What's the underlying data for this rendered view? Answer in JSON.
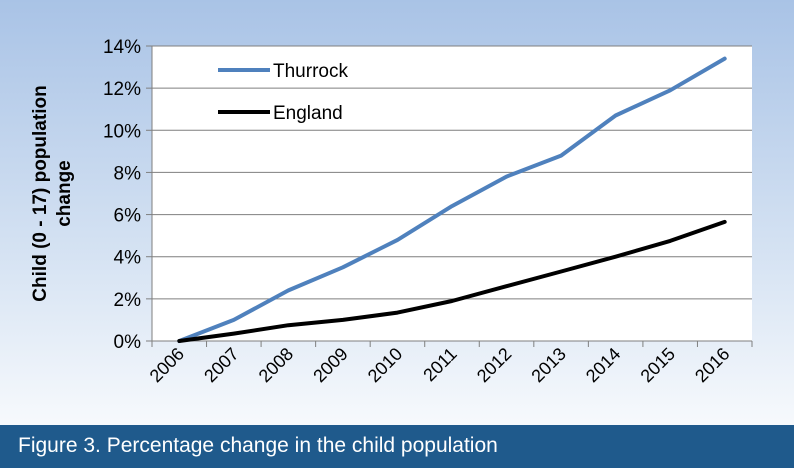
{
  "caption": "Figure 3. Percentage change in the child population",
  "chart_data": {
    "type": "line",
    "title": "",
    "xlabel": "",
    "ylabel": "Child (0 - 17) population change",
    "ylabel_lines": [
      "Child (0 - 17) population",
      "change"
    ],
    "categories": [
      "2006",
      "2007",
      "2008",
      "2009",
      "2010",
      "2011",
      "2012",
      "2013",
      "2014",
      "2015",
      "2016"
    ],
    "y_ticks": [
      "0%",
      "2%",
      "4%",
      "6%",
      "8%",
      "10%",
      "12%",
      "14%"
    ],
    "ylim": [
      0,
      14
    ],
    "grid": true,
    "legend_position": "top-left",
    "series": [
      {
        "name": "Thurrock",
        "color": "#4f81bd",
        "values": [
          0.0,
          1.0,
          2.4,
          3.5,
          4.8,
          6.4,
          7.8,
          8.8,
          10.7,
          11.9,
          13.4
        ]
      },
      {
        "name": "England",
        "color": "#000000",
        "values": [
          0.0,
          0.35,
          0.75,
          1.0,
          1.35,
          1.9,
          2.6,
          3.3,
          4.0,
          4.75,
          5.65
        ]
      }
    ]
  }
}
